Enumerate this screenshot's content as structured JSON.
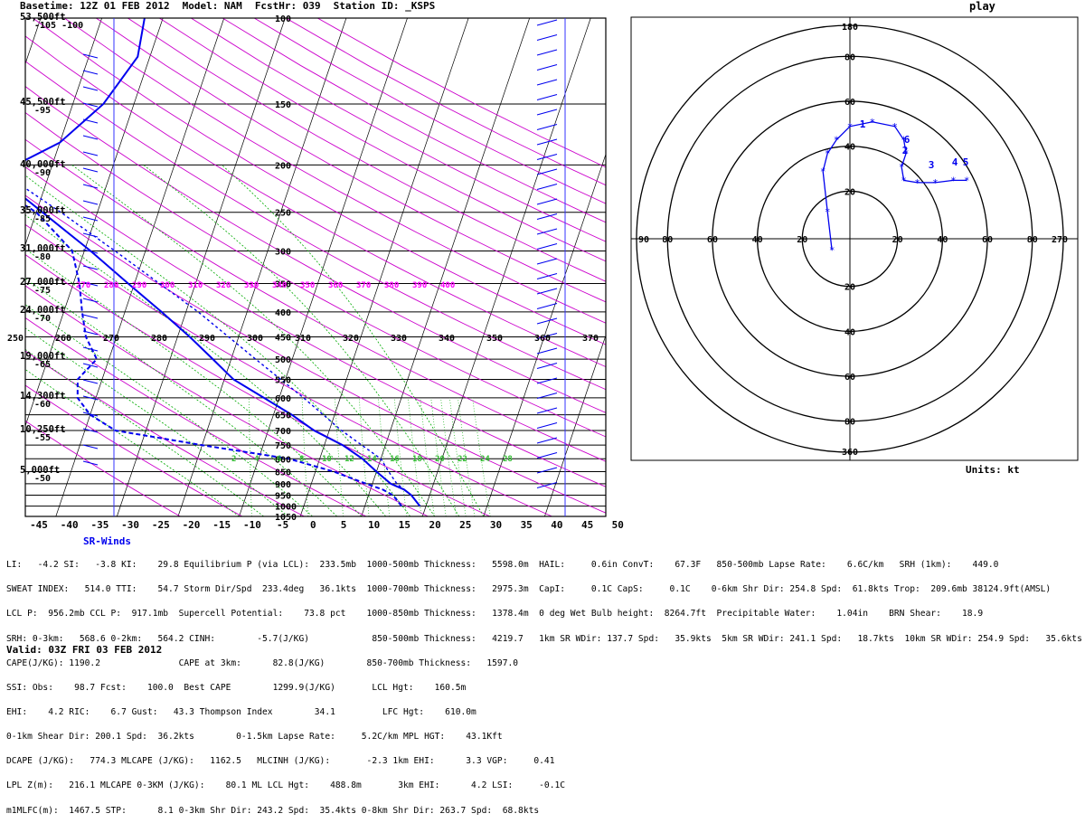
{
  "header": {
    "basetime": "Basetime: 12Z 01 FEB 2012",
    "model": "Model: NAM",
    "fcsthr": "FcstHr: 039",
    "station": "Station ID: _KSPS",
    "right_fragment": "play"
  },
  "colors": {
    "isotherm": "#3333ff",
    "dry_adiabat": "#cc00cc",
    "moist_adiabat": "#00aa00",
    "mixing_ratio": "#33bb33",
    "profile": "#0000ee",
    "theta_label": "#ff00ff",
    "grid": "#000000"
  },
  "skewt": {
    "height_labels": [
      "53,500ft",
      "45,500ft",
      "40,000ft",
      "35,000ft",
      "31,000ft",
      "27,000ft",
      "24,000ft",
      "19,000ft",
      "14,300ft",
      "10,250ft",
      "5,000ft"
    ],
    "temp_left_labels": [
      "-105 -100",
      "-95",
      "-90",
      "-85",
      "-80",
      "-75",
      "-70",
      "-65",
      "-60",
      "-55",
      "-50"
    ],
    "pressure_labels": [
      "100",
      "150",
      "200",
      "250",
      "300",
      "350",
      "400",
      "450",
      "500",
      "550",
      "600",
      "650",
      "700",
      "750",
      "800",
      "850",
      "900",
      "950",
      "1000",
      "1050"
    ],
    "theta_labels": [
      "270",
      "280",
      "290",
      "300",
      "310",
      "320",
      "330",
      "340",
      "350",
      "360",
      "370",
      "380",
      "390",
      "400"
    ],
    "theta_e_labels": [
      "250",
      "260",
      "270",
      "280",
      "290",
      "300",
      "310",
      "320",
      "330",
      "340",
      "350",
      "360",
      "370"
    ],
    "mixing_ratio_labels": [
      "2",
      "4",
      "6",
      "8",
      "10",
      "12",
      "14",
      "16",
      "18",
      "20",
      "22",
      "24",
      "28"
    ],
    "x_axis": [
      "-45",
      "-40",
      "-35",
      "-30",
      "-25",
      "-20",
      "-15",
      "-10",
      "-5",
      "0",
      "5",
      "10",
      "15",
      "20",
      "25",
      "30",
      "35",
      "40",
      "45",
      "50"
    ],
    "x_range": [
      -45,
      50
    ],
    "p_range": [
      100,
      1050
    ],
    "skew_deg_per_decade": 49
  },
  "chart_data": [
    {
      "type": "line",
      "chart": "skew-T",
      "series": [
        {
          "role": "temperature",
          "p": [
            1000,
            950,
            925,
            900,
            850,
            800,
            750,
            700,
            650,
            600,
            550,
            500,
            450,
            400,
            350,
            300,
            250,
            220,
            200,
            180,
            150,
            120,
            100
          ],
          "t": [
            19,
            17,
            15.5,
            13,
            10,
            7,
            3,
            -2.5,
            -7,
            -12.5,
            -18.5,
            -23,
            -28,
            -34,
            -41,
            -49,
            -59,
            -66,
            -66,
            -60,
            -55,
            -52,
            -53
          ]
        },
        {
          "role": "dewpoint",
          "p": [
            1000,
            950,
            925,
            900,
            850,
            800,
            750,
            700,
            650,
            600,
            550,
            500,
            450,
            400,
            350,
            300,
            250,
            200,
            150,
            100
          ],
          "t": [
            16,
            14,
            12,
            9,
            3,
            -5,
            -20,
            -35,
            -40,
            -43,
            -44,
            -42,
            -45,
            -47,
            -49,
            -52,
            -60,
            -75,
            -82,
            -88
          ]
        },
        {
          "role": "parcel",
          "p": [
            1000,
            950,
            900,
            850,
            800,
            700,
            600,
            500,
            400,
            300,
            250,
            200
          ],
          "t": [
            19,
            17,
            14,
            12,
            10,
            2,
            -6,
            -16,
            -28,
            -45,
            -56,
            -70
          ]
        }
      ]
    },
    {
      "type": "line",
      "chart": "hodograph",
      "rings": [
        20,
        40,
        60,
        80
      ],
      "axis_labels": {
        "top": "180",
        "bottom": "360",
        "left": "90",
        "right": "270"
      },
      "ring_labels": [
        "20",
        "40",
        "60",
        "80"
      ],
      "units": "Units: kt",
      "hour_labels": [
        "1",
        "2",
        "3",
        "4",
        "5",
        "6"
      ],
      "points": [
        {
          "u": -8,
          "v": -5
        },
        {
          "u": -10,
          "v": 12
        },
        {
          "u": -12,
          "v": 30
        },
        {
          "u": -10,
          "v": 38
        },
        {
          "u": -6,
          "v": 44
        },
        {
          "u": 0,
          "v": 50
        },
        {
          "u": 10,
          "v": 52
        },
        {
          "u": 20,
          "v": 50
        },
        {
          "u": 24,
          "v": 44
        },
        {
          "u": 25,
          "v": 38
        },
        {
          "u": 23,
          "v": 32
        },
        {
          "u": 24,
          "v": 26
        },
        {
          "u": 30,
          "v": 25
        },
        {
          "u": 38,
          "v": 25
        },
        {
          "u": 46,
          "v": 26
        },
        {
          "u": 52,
          "v": 26
        }
      ]
    }
  ],
  "srwinds_title": "SR-Winds",
  "indices": [
    "LI:   -4.2 SI:   -3.8 KI:    29.8 Equilibrium P (via LCL):  233.5mb  1000-500mb Thickness:   5598.0m  HAIL:     0.6in ConvT:    67.3F   850-500mb Lapse Rate:    6.6C/km   SRH (1km):    449.0",
    "SWEAT INDEX:   514.0 TTI:    54.7 Storm Dir/Spd  233.4deg   36.1kts  1000-700mb Thickness:   2975.3m  CapI:     0.1C CapS:     0.1C    0-6km Shr Dir: 254.8 Spd:  61.8kts Trop:  209.6mb 38124.9ft(AMSL)",
    "LCL P:  956.2mb CCL P:  917.1mb  Supercell Potential:    73.8 pct    1000-850mb Thickness:   1378.4m  0 deg Wet Bulb height:  8264.7ft  Precipitable Water:    1.04in    BRN Shear:    18.9",
    "SRH: 0-3km:   568.6 0-2km:   564.2 CINH:        -5.7(J/KG)            850-500mb Thickness:   4219.7   1km SR WDir: 137.7 Spd:   35.9kts  5km SR WDir: 241.1 Spd:   18.7kts  10km SR WDir: 254.9 Spd:   35.6kts",
    "CAPE(J/KG): 1190.2               CAPE at 3km:      82.8(J/KG)        850-700mb Thickness:   1597.0",
    "SSI: Obs:    98.7 Fcst:    100.0  Best CAPE        1299.9(J/KG)       LCL Hgt:    160.5m",
    "EHI:    4.2 RIC:    6.7 Gust:   43.3 Thompson Index        34.1         LFC Hgt:    610.0m",
    "0-1km Shear Dir: 200.1 Spd:  36.2kts        0-1.5km Lapse Rate:     5.2C/km MPL HGT:    43.1Kft",
    "DCAPE (J/KG):   774.3 MLCAPE (J/KG):   1162.5   MLCINH (J/KG):       -2.3 1km EHI:      3.3 VGP:     0.41",
    "LPL Z(m):   216.1 MLCAPE 0-3KM (J/KG):    80.1 ML LCL Hgt:    488.8m       3km EHI:      4.2 LSI:     -0.1C",
    "m1MLFC(m):  1467.5 STP:      8.1 0-3km Shr Dir: 243.2 Spd:  35.4kts 0-8km Shr Dir: 263.7 Spd:  68.8kts"
  ],
  "valid": "Valid: 03Z FRI 03 FEB 2012"
}
